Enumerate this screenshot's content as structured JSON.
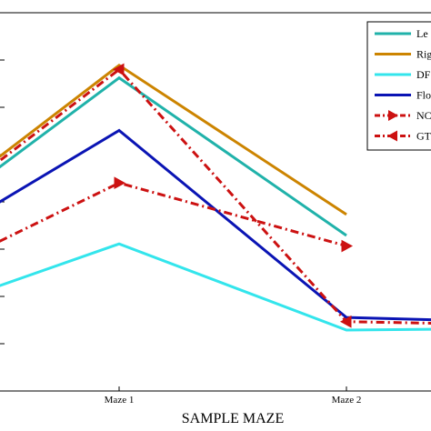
{
  "chart_data": {
    "type": "line",
    "categories": [
      "",
      "Maze 1",
      "Maze 2",
      ""
    ],
    "xlabel": "SAMPLE MAZE",
    "ylabel": "",
    "title": "",
    "grid": false,
    "legend": "top-right",
    "ylim": [
      0,
      9
    ],
    "series": [
      {
        "name": "Le",
        "color": "#20b2aa",
        "style": "solid",
        "marker": "none",
        "values": [
          3.4,
          7.45,
          3.7,
          null
        ]
      },
      {
        "name": "Rig",
        "color": "#cc8400",
        "style": "solid",
        "marker": "none",
        "values": [
          3.6,
          7.75,
          4.2,
          null
        ]
      },
      {
        "name": "DF",
        "color": "#33e5ec",
        "style": "solid",
        "marker": "none",
        "values": [
          1.6,
          3.5,
          1.45,
          1.5
        ]
      },
      {
        "name": "Flo",
        "color": "#0a14b4",
        "style": "solid",
        "marker": "none",
        "values": [
          2.95,
          6.2,
          1.75,
          1.6
        ]
      },
      {
        "name": "NC",
        "color": "#cc1111",
        "style": "dashdot",
        "marker": "triangle-right",
        "values": [
          2.3,
          4.95,
          3.45,
          null
        ]
      },
      {
        "name": "GT",
        "color": "#cc1111",
        "style": "dashdot",
        "marker": "triangle-left",
        "values": [
          3.5,
          7.65,
          1.65,
          1.55
        ]
      }
    ]
  }
}
